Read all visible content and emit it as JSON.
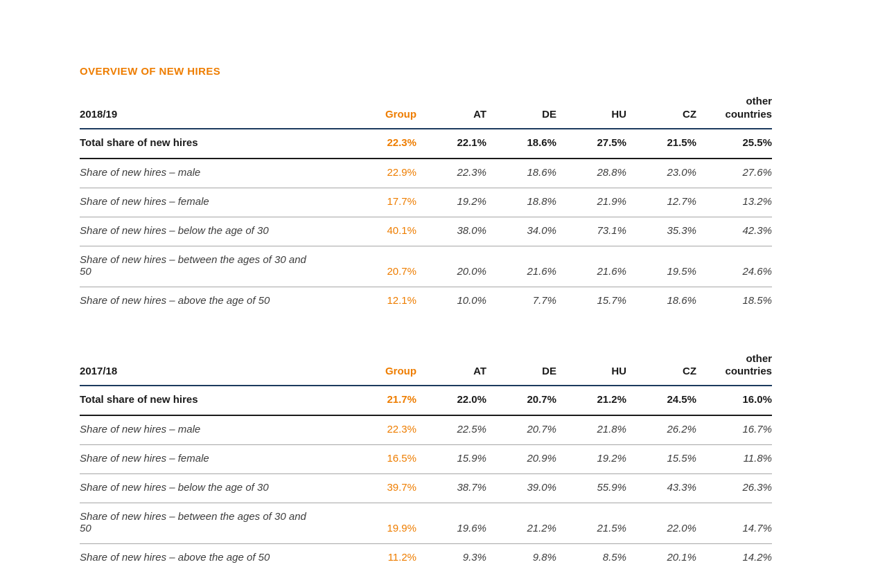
{
  "page": {
    "title": "OVERVIEW OF NEW HIRES"
  },
  "colors": {
    "accent_orange": "#ee7d00",
    "header_rule_navy": "#1c3a5e",
    "total_rule_dark": "#1a1a1a",
    "row_rule_gray": "#a6a6a6"
  },
  "tables": [
    {
      "year_label": "2018/19",
      "columns": [
        "Group",
        "AT",
        "DE",
        "HU",
        "CZ",
        "other countries"
      ],
      "rows": [
        {
          "label": "Total share of new hires",
          "values": [
            "22.3%",
            "22.1%",
            "18.6%",
            "27.5%",
            "21.5%",
            "25.5%"
          ]
        },
        {
          "label": "Share of new hires – male",
          "values": [
            "22.9%",
            "22.3%",
            "18.6%",
            "28.8%",
            "23.0%",
            "27.6%"
          ]
        },
        {
          "label": "Share of new hires – female",
          "values": [
            "17.7%",
            "19.2%",
            "18.8%",
            "21.9%",
            "12.7%",
            "13.2%"
          ]
        },
        {
          "label": "Share of new hires – below the age of 30",
          "values": [
            "40.1%",
            "38.0%",
            "34.0%",
            "73.1%",
            "35.3%",
            "42.3%"
          ]
        },
        {
          "label": "Share of new hires – between the ages of 30 and 50",
          "values": [
            "20.7%",
            "20.0%",
            "21.6%",
            "21.6%",
            "19.5%",
            "24.6%"
          ]
        },
        {
          "label": "Share of new hires – above the age of 50",
          "values": [
            "12.1%",
            "10.0%",
            "7.7%",
            "15.7%",
            "18.6%",
            "18.5%"
          ]
        }
      ]
    },
    {
      "year_label": "2017/18",
      "columns": [
        "Group",
        "AT",
        "DE",
        "HU",
        "CZ",
        "other countries"
      ],
      "rows": [
        {
          "label": "Total share of new hires",
          "values": [
            "21.7%",
            "22.0%",
            "20.7%",
            "21.2%",
            "24.5%",
            "16.0%"
          ]
        },
        {
          "label": "Share of new hires – male",
          "values": [
            "22.3%",
            "22.5%",
            "20.7%",
            "21.8%",
            "26.2%",
            "16.7%"
          ]
        },
        {
          "label": "Share of new hires – female",
          "values": [
            "16.5%",
            "15.9%",
            "20.9%",
            "19.2%",
            "15.5%",
            "11.8%"
          ]
        },
        {
          "label": "Share of new hires – below the age of 30",
          "values": [
            "39.7%",
            "38.7%",
            "39.0%",
            "55.9%",
            "43.3%",
            "26.3%"
          ]
        },
        {
          "label": "Share of new hires – between the ages of 30 and 50",
          "values": [
            "19.9%",
            "19.6%",
            "21.2%",
            "21.5%",
            "22.0%",
            "14.7%"
          ]
        },
        {
          "label": "Share of new hires – above the age of 50",
          "values": [
            "11.2%",
            "9.3%",
            "9.8%",
            "8.5%",
            "20.1%",
            "14.2%"
          ]
        }
      ]
    }
  ]
}
